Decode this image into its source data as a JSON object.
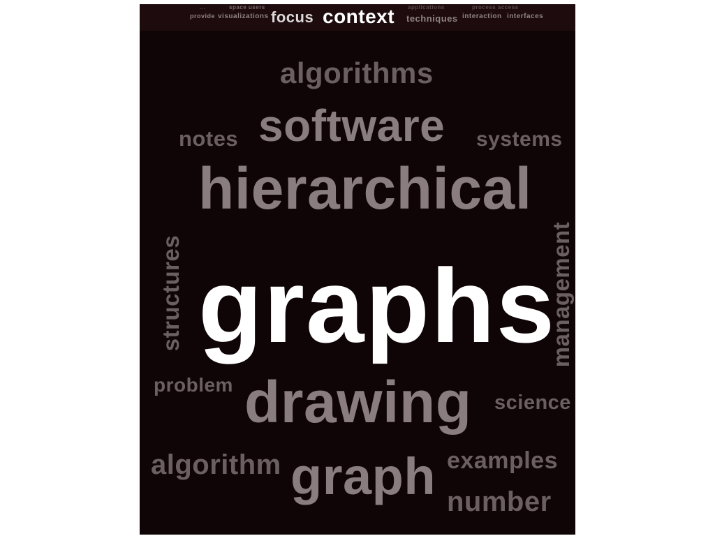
{
  "top_band": {
    "row1": [
      "...",
      "space users",
      "applications",
      "process access"
    ],
    "row2": [
      "provide",
      "visualizations",
      "techniques",
      "interaction",
      "interfaces"
    ],
    "focus": "focus",
    "context": "context"
  },
  "words": {
    "algorithms": "algorithms",
    "software": "software",
    "notes": "notes",
    "systems": "systems",
    "hierarchical": "hierarchical",
    "structures": "structures",
    "graphs": "graphs",
    "management": "management",
    "problem": "problem",
    "drawing": "drawing",
    "science": "science",
    "algorithm": "algorithm",
    "graph": "graph",
    "examples": "examples",
    "number": "number"
  },
  "colors": {
    "panel_background": "#0f0506",
    "top_band_background": "#1d0b0d",
    "highlight_word": "#ffffff",
    "secondary_word": "#8a7d80",
    "tertiary_word": "#6b5f62"
  }
}
